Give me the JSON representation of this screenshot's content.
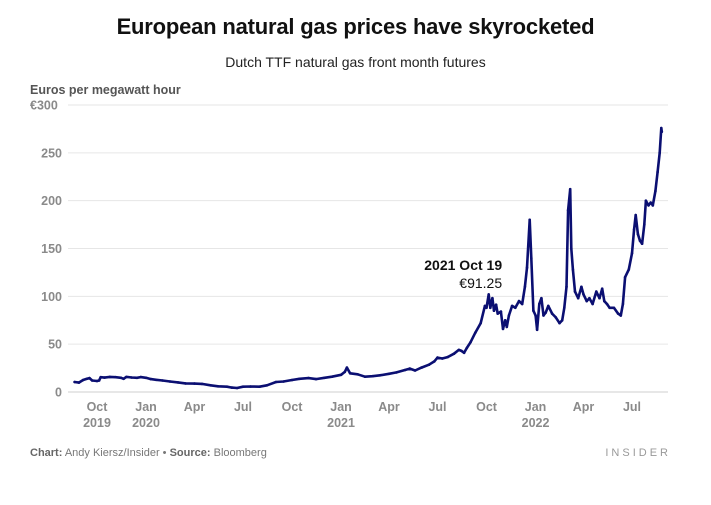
{
  "chart_data": {
    "type": "line",
    "title": "European natural gas prices have skyrocketed",
    "subtitle": "Dutch TTF natural gas front month futures",
    "ylabel": "Euros per megawatt hour",
    "xlabel": "",
    "ylim": [
      0,
      300
    ],
    "yticks": [
      {
        "value": 0,
        "label": "0"
      },
      {
        "value": 50,
        "label": "50"
      },
      {
        "value": 100,
        "label": "100"
      },
      {
        "value": 150,
        "label": "150"
      },
      {
        "value": 200,
        "label": "200"
      },
      {
        "value": 250,
        "label": "250"
      },
      {
        "value": 300,
        "label": "€300"
      }
    ],
    "xlim": [
      "2019-08-01",
      "2022-09-01"
    ],
    "xticks": [
      {
        "date": "2019-10-01",
        "line1": "Oct",
        "line2": "2019"
      },
      {
        "date": "2020-01-01",
        "line1": "Jan",
        "line2": "2020"
      },
      {
        "date": "2020-04-01",
        "line1": "Apr",
        "line2": ""
      },
      {
        "date": "2020-07-01",
        "line1": "Jul",
        "line2": ""
      },
      {
        "date": "2020-10-01",
        "line1": "Oct",
        "line2": ""
      },
      {
        "date": "2021-01-01",
        "line1": "Jan",
        "line2": "2021"
      },
      {
        "date": "2021-04-01",
        "line1": "Apr",
        "line2": ""
      },
      {
        "date": "2021-07-01",
        "line1": "Jul",
        "line2": ""
      },
      {
        "date": "2021-10-01",
        "line1": "Oct",
        "line2": ""
      },
      {
        "date": "2022-01-01",
        "line1": "Jan",
        "line2": "2022"
      },
      {
        "date": "2022-04-01",
        "line1": "Apr",
        "line2": ""
      },
      {
        "date": "2022-07-01",
        "line1": "Jul",
        "line2": ""
      }
    ],
    "grid": true,
    "legend": "none",
    "series": [
      {
        "name": "Dutch TTF front month futures (EUR/MWh)",
        "color": "#0b0f72",
        "points": [
          [
            "2019-08-20",
            10.5
          ],
          [
            "2019-08-28",
            9.8
          ],
          [
            "2019-09-05",
            12.5
          ],
          [
            "2019-09-12",
            13.8
          ],
          [
            "2019-09-17",
            14.5
          ],
          [
            "2019-09-22",
            12.0
          ],
          [
            "2019-10-01",
            11.5
          ],
          [
            "2019-10-05",
            12.0
          ],
          [
            "2019-10-08",
            15.5
          ],
          [
            "2019-10-15",
            15.0
          ],
          [
            "2019-10-25",
            15.8
          ],
          [
            "2019-11-05",
            15.5
          ],
          [
            "2019-11-15",
            14.8
          ],
          [
            "2019-11-20",
            13.8
          ],
          [
            "2019-11-25",
            15.8
          ],
          [
            "2019-12-05",
            15.2
          ],
          [
            "2019-12-15",
            14.8
          ],
          [
            "2019-12-22",
            15.6
          ],
          [
            "2020-01-01",
            14.8
          ],
          [
            "2020-01-10",
            13.5
          ],
          [
            "2020-01-20",
            12.8
          ],
          [
            "2020-02-01",
            12.0
          ],
          [
            "2020-02-15",
            11.0
          ],
          [
            "2020-03-01",
            10.0
          ],
          [
            "2020-03-15",
            9.0
          ],
          [
            "2020-04-01",
            8.8
          ],
          [
            "2020-04-15",
            8.5
          ],
          [
            "2020-05-01",
            7.0
          ],
          [
            "2020-05-15",
            6.0
          ],
          [
            "2020-06-01",
            5.5
          ],
          [
            "2020-06-10",
            4.6
          ],
          [
            "2020-06-20",
            4.2
          ],
          [
            "2020-07-01",
            5.5
          ],
          [
            "2020-07-15",
            5.8
          ],
          [
            "2020-08-01",
            5.5
          ],
          [
            "2020-08-15",
            7.0
          ],
          [
            "2020-09-01",
            10.5
          ],
          [
            "2020-09-15",
            11.0
          ],
          [
            "2020-10-01",
            12.5
          ],
          [
            "2020-10-15",
            13.8
          ],
          [
            "2020-11-01",
            14.5
          ],
          [
            "2020-11-15",
            13.5
          ],
          [
            "2020-12-01",
            14.8
          ],
          [
            "2020-12-15",
            16.0
          ],
          [
            "2021-01-01",
            18.0
          ],
          [
            "2021-01-08",
            21.0
          ],
          [
            "2021-01-12",
            25.5
          ],
          [
            "2021-01-18",
            19.5
          ],
          [
            "2021-02-01",
            18.5
          ],
          [
            "2021-02-15",
            16.0
          ],
          [
            "2021-03-01",
            16.5
          ],
          [
            "2021-03-15",
            17.5
          ],
          [
            "2021-04-01",
            19.0
          ],
          [
            "2021-04-15",
            20.5
          ],
          [
            "2021-05-01",
            23.0
          ],
          [
            "2021-05-10",
            24.5
          ],
          [
            "2021-05-20",
            22.5
          ],
          [
            "2021-06-01",
            25.5
          ],
          [
            "2021-06-15",
            28.5
          ],
          [
            "2021-06-25",
            32.0
          ],
          [
            "2021-07-01",
            36.0
          ],
          [
            "2021-07-10",
            35.0
          ],
          [
            "2021-07-20",
            36.5
          ],
          [
            "2021-08-01",
            40.0
          ],
          [
            "2021-08-10",
            44.0
          ],
          [
            "2021-08-15",
            43.0
          ],
          [
            "2021-08-20",
            41.0
          ],
          [
            "2021-08-25",
            46.0
          ],
          [
            "2021-09-01",
            52.0
          ],
          [
            "2021-09-10",
            62.0
          ],
          [
            "2021-09-20",
            72.0
          ],
          [
            "2021-09-28",
            90.0
          ],
          [
            "2021-10-01",
            88.0
          ],
          [
            "2021-10-05",
            102.0
          ],
          [
            "2021-10-08",
            88.0
          ],
          [
            "2021-10-12",
            98.0
          ],
          [
            "2021-10-15",
            85.0
          ],
          [
            "2021-10-19",
            91.25
          ],
          [
            "2021-10-22",
            82.0
          ],
          [
            "2021-10-28",
            84.0
          ],
          [
            "2021-11-01",
            66.0
          ],
          [
            "2021-11-05",
            75.0
          ],
          [
            "2021-11-08",
            68.0
          ],
          [
            "2021-11-12",
            80.0
          ],
          [
            "2021-11-18",
            90.0
          ],
          [
            "2021-11-24",
            88.0
          ],
          [
            "2021-12-01",
            95.0
          ],
          [
            "2021-12-07",
            92.0
          ],
          [
            "2021-12-12",
            110.0
          ],
          [
            "2021-12-16",
            130.0
          ],
          [
            "2021-12-21",
            180.0
          ],
          [
            "2021-12-24",
            140.0
          ],
          [
            "2021-12-28",
            85.0
          ],
          [
            "2022-01-01",
            80.0
          ],
          [
            "2022-01-04",
            65.0
          ],
          [
            "2022-01-08",
            92.0
          ],
          [
            "2022-01-12",
            98.0
          ],
          [
            "2022-01-16",
            80.0
          ],
          [
            "2022-01-20",
            83.0
          ],
          [
            "2022-01-25",
            90.0
          ],
          [
            "2022-02-01",
            82.0
          ],
          [
            "2022-02-08",
            78.0
          ],
          [
            "2022-02-15",
            72.0
          ],
          [
            "2022-02-20",
            75.0
          ],
          [
            "2022-02-24",
            88.0
          ],
          [
            "2022-02-28",
            110.0
          ],
          [
            "2022-03-03",
            190.0
          ],
          [
            "2022-03-07",
            212.0
          ],
          [
            "2022-03-09",
            150.0
          ],
          [
            "2022-03-12",
            128.0
          ],
          [
            "2022-03-16",
            105.0
          ],
          [
            "2022-03-22",
            98.0
          ],
          [
            "2022-03-28",
            110.0
          ],
          [
            "2022-04-01",
            102.0
          ],
          [
            "2022-04-07",
            95.0
          ],
          [
            "2022-04-12",
            98.0
          ],
          [
            "2022-04-18",
            92.0
          ],
          [
            "2022-04-25",
            105.0
          ],
          [
            "2022-05-01",
            98.0
          ],
          [
            "2022-05-06",
            108.0
          ],
          [
            "2022-05-10",
            95.0
          ],
          [
            "2022-05-15",
            92.0
          ],
          [
            "2022-05-20",
            88.0
          ],
          [
            "2022-05-28",
            88.0
          ],
          [
            "2022-06-05",
            82.0
          ],
          [
            "2022-06-10",
            80.0
          ],
          [
            "2022-06-14",
            92.0
          ],
          [
            "2022-06-18",
            120.0
          ],
          [
            "2022-06-25",
            128.0
          ],
          [
            "2022-07-01",
            145.0
          ],
          [
            "2022-07-05",
            170.0
          ],
          [
            "2022-07-08",
            185.0
          ],
          [
            "2022-07-12",
            165.0
          ],
          [
            "2022-07-16",
            158.0
          ],
          [
            "2022-07-20",
            155.0
          ],
          [
            "2022-07-24",
            175.0
          ],
          [
            "2022-07-27",
            200.0
          ],
          [
            "2022-08-01",
            195.0
          ],
          [
            "2022-08-05",
            198.0
          ],
          [
            "2022-08-09",
            195.0
          ],
          [
            "2022-08-14",
            210.0
          ],
          [
            "2022-08-18",
            230.0
          ],
          [
            "2022-08-22",
            250.0
          ],
          [
            "2022-08-25",
            276.0
          ],
          [
            "2022-08-26",
            272.0
          ]
        ]
      }
    ],
    "annotations": [
      {
        "date": "2021-10-19",
        "label": "2021 Oct 19",
        "value_label": "€91.25",
        "value": 91.25
      }
    ]
  },
  "footer": {
    "chart_label": "Chart:",
    "chart_author": "Andy Kiersz/Insider",
    "separator": "•",
    "source_label": "Source:",
    "source_value": "Bloomberg",
    "brand": "INSIDER"
  }
}
